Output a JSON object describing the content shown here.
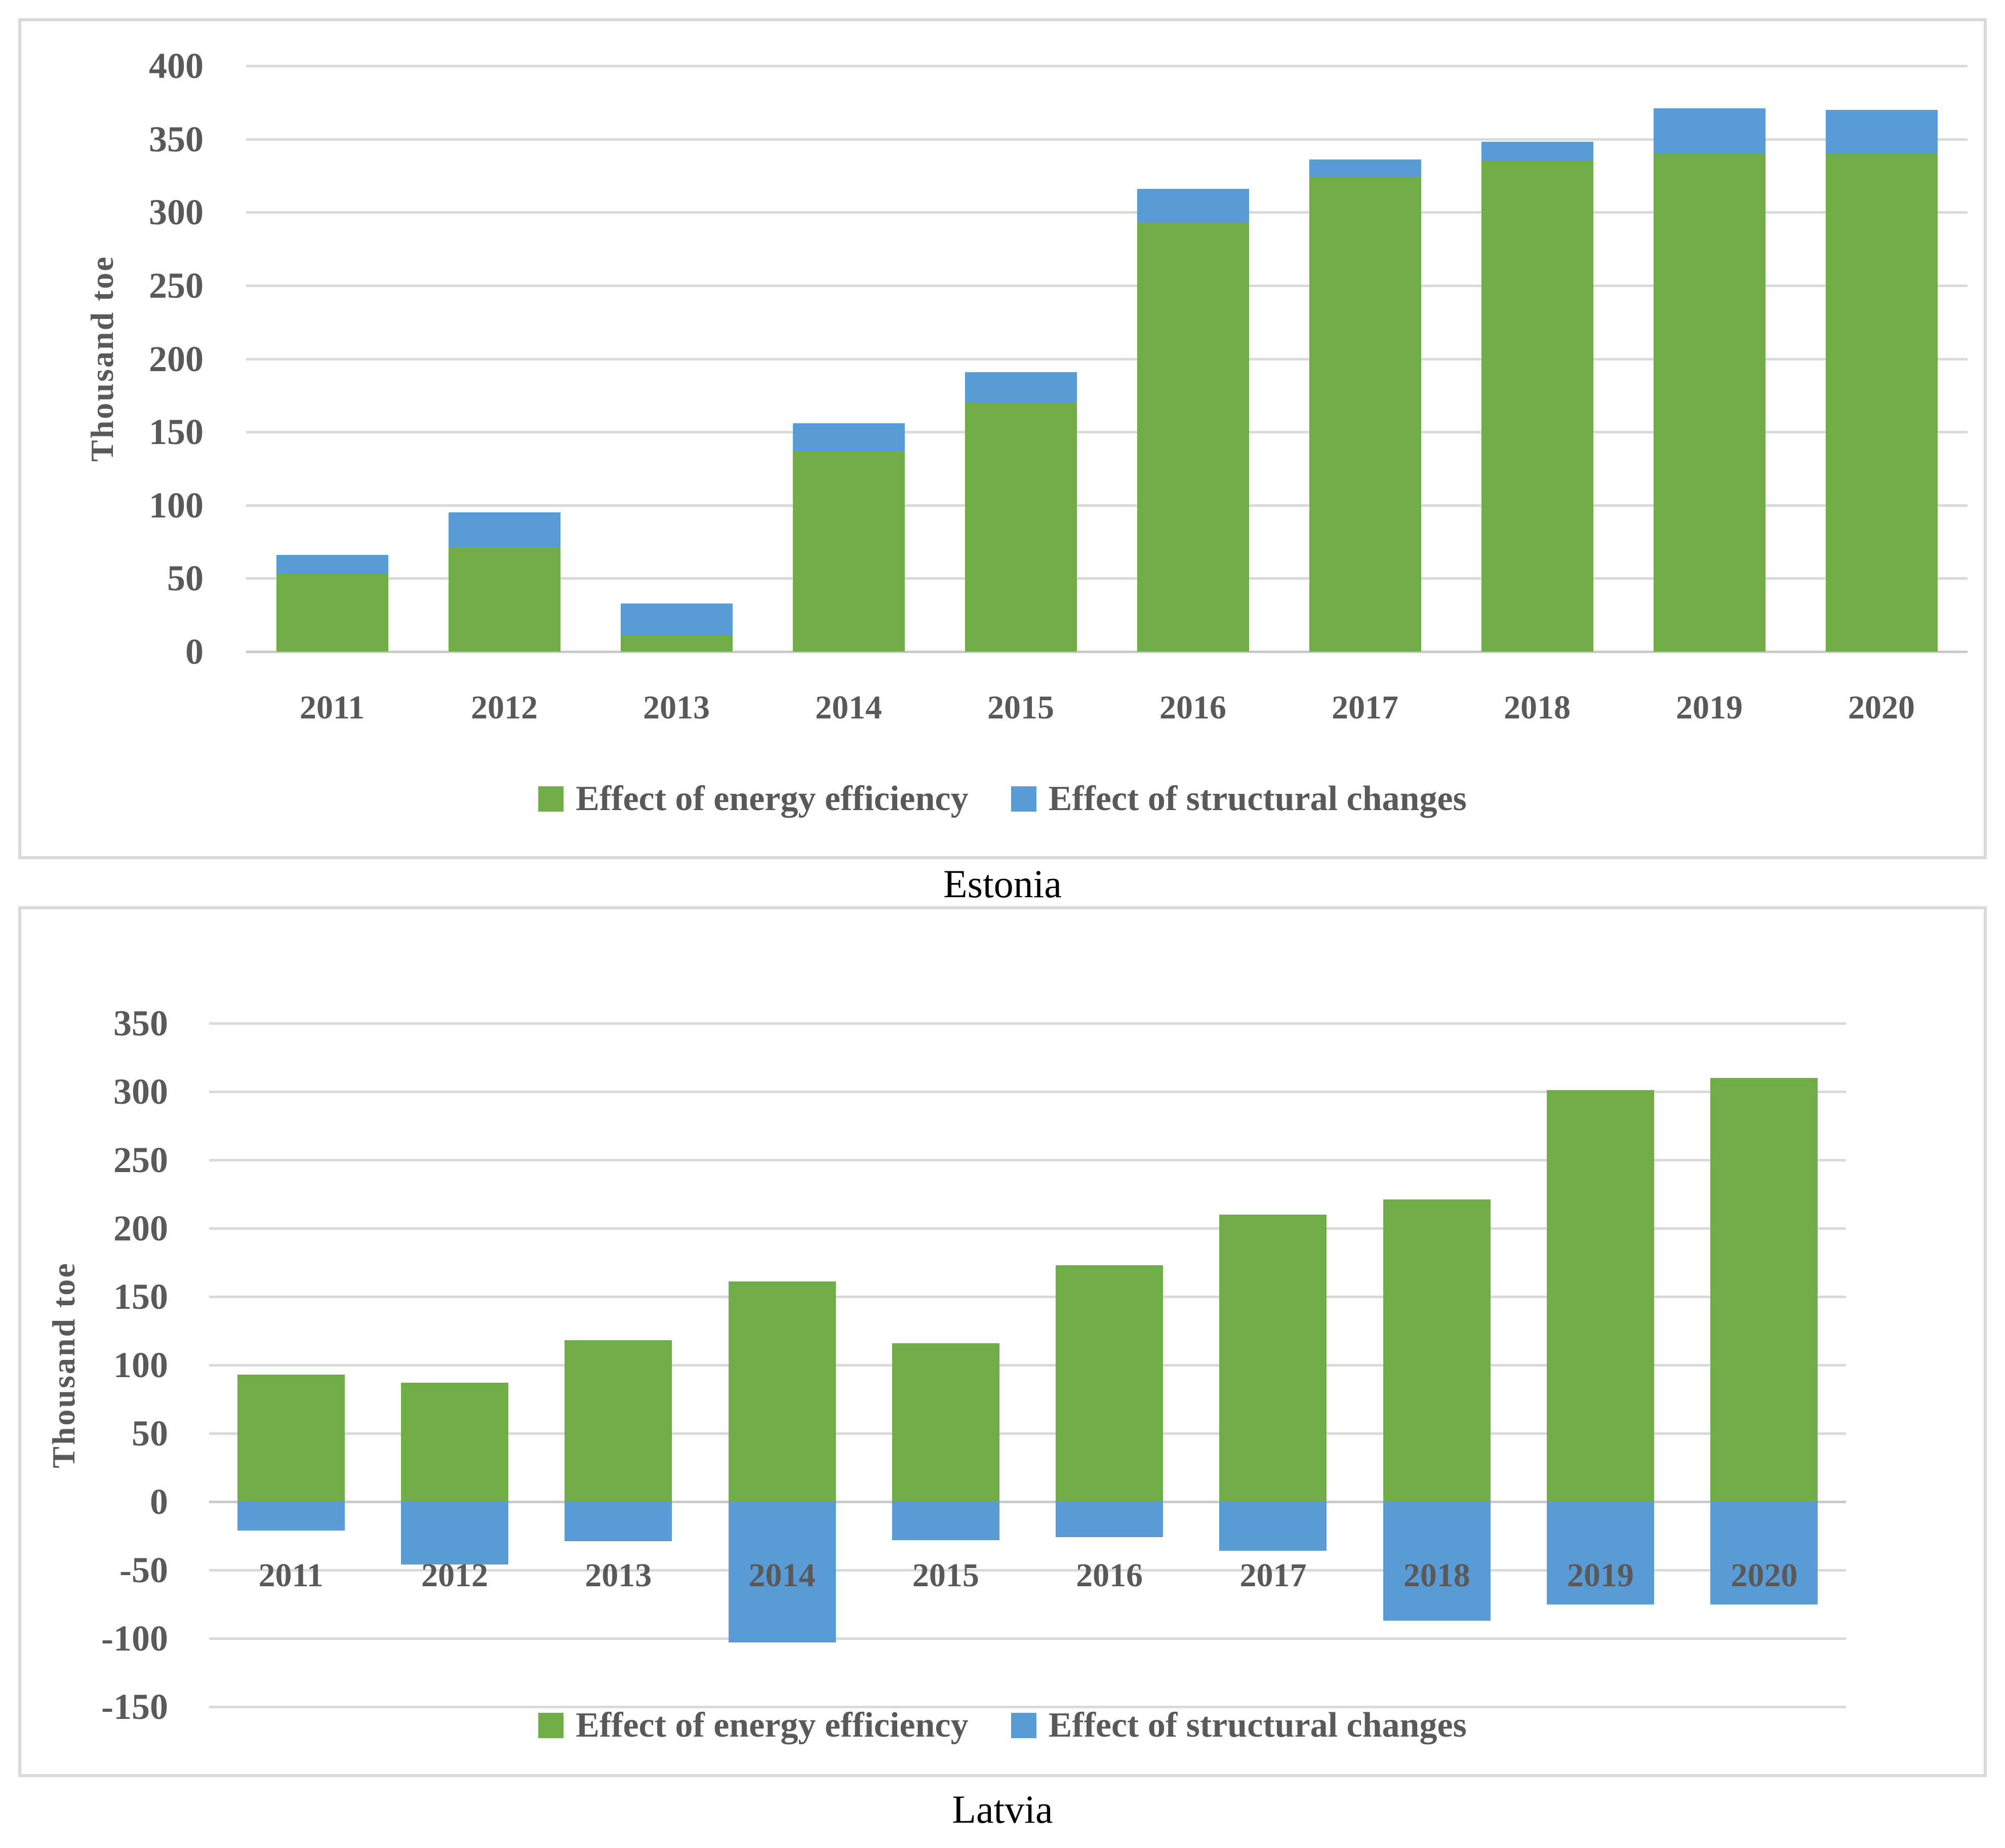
{
  "chart_data": [
    {
      "type": "bar",
      "stacked": true,
      "title": "Estonia",
      "ylabel": "Thousand toe",
      "xlabel": "",
      "categories": [
        "2011",
        "2012",
        "2013",
        "2014",
        "2015",
        "2016",
        "2017",
        "2018",
        "2019",
        "2020"
      ],
      "series": [
        {
          "name": "Effect of energy efficiency",
          "color": "#70AD47",
          "values": [
            53,
            71,
            11,
            137,
            170,
            293,
            324,
            335,
            340,
            340
          ]
        },
        {
          "name": "Effect of structural changes",
          "color": "#5B9BD5",
          "values": [
            13,
            24,
            22,
            19,
            21,
            23,
            12,
            13,
            31,
            30
          ]
        }
      ],
      "stack_totals": [
        66,
        95,
        33,
        156,
        191,
        316,
        336,
        348,
        371,
        370
      ],
      "ylim": [
        0,
        400
      ],
      "ytick_step": 50,
      "grid": true,
      "grid_color": "#D9D9D9",
      "axis_text_color": "#595959",
      "legend_position": "bottom"
    },
    {
      "type": "bar",
      "stacked": true,
      "title": "Latvia",
      "ylabel": "Thousand toe",
      "xlabel": "",
      "categories": [
        "2011",
        "2012",
        "2013",
        "2014",
        "2015",
        "2016",
        "2017",
        "2018",
        "2019",
        "2020"
      ],
      "series": [
        {
          "name": "Effect of energy efficiency",
          "color": "#70AD47",
          "values": [
            93,
            87,
            118,
            161,
            116,
            173,
            210,
            221,
            301,
            310
          ]
        },
        {
          "name": "Effect of structural changes",
          "color": "#5B9BD5",
          "values": [
            -21,
            -46,
            -29,
            -103,
            -28,
            -26,
            -36,
            -87,
            -75,
            -75
          ]
        }
      ],
      "ylim": [
        -150,
        350
      ],
      "ytick_step": 50,
      "grid": true,
      "grid_color": "#D9D9D9",
      "axis_text_color": "#595959",
      "legend_position": "bottom"
    }
  ]
}
